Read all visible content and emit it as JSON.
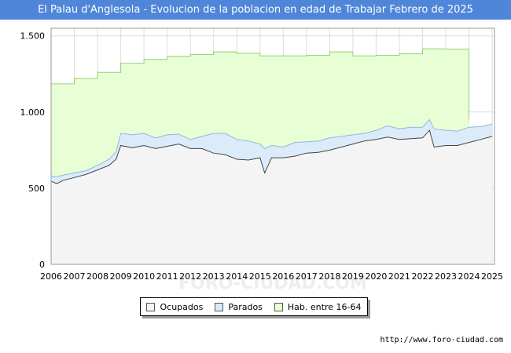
{
  "title": "El Palau d'Anglesola - Evolucion de la poblacion en edad de Trabajar Febrero de 2025",
  "source_text": "http://www.foro-ciudad.com",
  "watermark": "FORO-CIUDAD.COM",
  "colors": {
    "title_bg": "#4f86d9",
    "hab_fill": "#e8ffd6",
    "hab_line": "#90d070",
    "parados_fill": "#dcebfa",
    "parados_line": "#90b8e0",
    "ocupados_fill": "#f4f4f4",
    "ocupados_line": "#444444"
  },
  "chart_data": {
    "type": "area",
    "title": "El Palau d'Anglesola - Evolucion de la poblacion en edad de Trabajar Febrero de 2025",
    "xlabel": "",
    "ylabel": "",
    "xlim": [
      2006,
      2025.1
    ],
    "ylim": [
      0,
      1550
    ],
    "x_ticks": [
      2006,
      2007,
      2008,
      2009,
      2010,
      2011,
      2012,
      2013,
      2014,
      2015,
      2016,
      2017,
      2018,
      2019,
      2020,
      2021,
      2022,
      2023,
      2024,
      2025
    ],
    "x_tick_labels": [
      "2006",
      "2007",
      "2008",
      "2009",
      "2010",
      "2011",
      "2012",
      "2013",
      "2014",
      "2015",
      "2016",
      "2017",
      "2018",
      "2019",
      "2020",
      "2021",
      "2022",
      "2023",
      "2024",
      "2025"
    ],
    "y_ticks": [
      0,
      500,
      1000,
      1500
    ],
    "y_tick_labels": [
      "0",
      "500",
      "1.000",
      "1.500"
    ],
    "grid": true,
    "legend": [
      "Ocupados",
      "Parados",
      "Hab. entre 16-64"
    ],
    "legend_position": "bottom-center",
    "series": [
      {
        "name": "Hab. entre 16-64",
        "step": true,
        "x": [
          2006,
          2007,
          2008,
          2009,
          2010,
          2011,
          2012,
          2013,
          2014,
          2015,
          2016,
          2017,
          2018,
          2019,
          2020,
          2021,
          2022,
          2023,
          2024
        ],
        "values": [
          1185,
          1220,
          1260,
          1320,
          1345,
          1365,
          1378,
          1395,
          1385,
          1368,
          1368,
          1372,
          1395,
          1368,
          1372,
          1382,
          1415,
          1412,
          950
        ]
      },
      {
        "name": "Parados",
        "x": [
          2006,
          2006.25,
          2006.5,
          2007,
          2007.5,
          2008,
          2008.5,
          2008.8,
          2009,
          2009.5,
          2010,
          2010.5,
          2011,
          2011.5,
          2012,
          2012.5,
          2013,
          2013.5,
          2014,
          2014.5,
          2015,
          2015.2,
          2015.5,
          2016,
          2016.5,
          2017,
          2017.5,
          2018,
          2018.5,
          2019,
          2019.5,
          2020,
          2020.5,
          2021,
          2021.5,
          2022,
          2022.3,
          2022.5,
          2023,
          2023.5,
          2024,
          2024.5,
          2025
        ],
        "values": [
          580,
          575,
          585,
          600,
          615,
          650,
          690,
          740,
          860,
          850,
          860,
          830,
          850,
          855,
          820,
          840,
          860,
          860,
          820,
          810,
          790,
          760,
          780,
          770,
          800,
          805,
          810,
          830,
          840,
          850,
          860,
          880,
          910,
          890,
          900,
          900,
          950,
          890,
          880,
          875,
          900,
          905,
          920
        ]
      },
      {
        "name": "Ocupados",
        "x": [
          2006,
          2006.25,
          2006.5,
          2007,
          2007.5,
          2008,
          2008.5,
          2008.8,
          2009,
          2009.5,
          2010,
          2010.5,
          2011,
          2011.5,
          2012,
          2012.5,
          2013,
          2013.5,
          2014,
          2014.5,
          2015,
          2015.2,
          2015.5,
          2016,
          2016.5,
          2017,
          2017.5,
          2018,
          2018.5,
          2019,
          2019.5,
          2020,
          2020.5,
          2021,
          2021.5,
          2022,
          2022.3,
          2022.5,
          2023,
          2023.5,
          2024,
          2024.5,
          2025
        ],
        "values": [
          545,
          530,
          550,
          570,
          590,
          620,
          650,
          690,
          780,
          765,
          780,
          760,
          775,
          790,
          760,
          760,
          730,
          720,
          690,
          685,
          700,
          600,
          700,
          700,
          710,
          730,
          735,
          750,
          770,
          790,
          810,
          820,
          835,
          820,
          825,
          830,
          880,
          770,
          780,
          780,
          800,
          820,
          840
        ]
      }
    ]
  },
  "legend_labels": [
    "Ocupados",
    "Parados",
    "Hab. entre 16-64"
  ]
}
